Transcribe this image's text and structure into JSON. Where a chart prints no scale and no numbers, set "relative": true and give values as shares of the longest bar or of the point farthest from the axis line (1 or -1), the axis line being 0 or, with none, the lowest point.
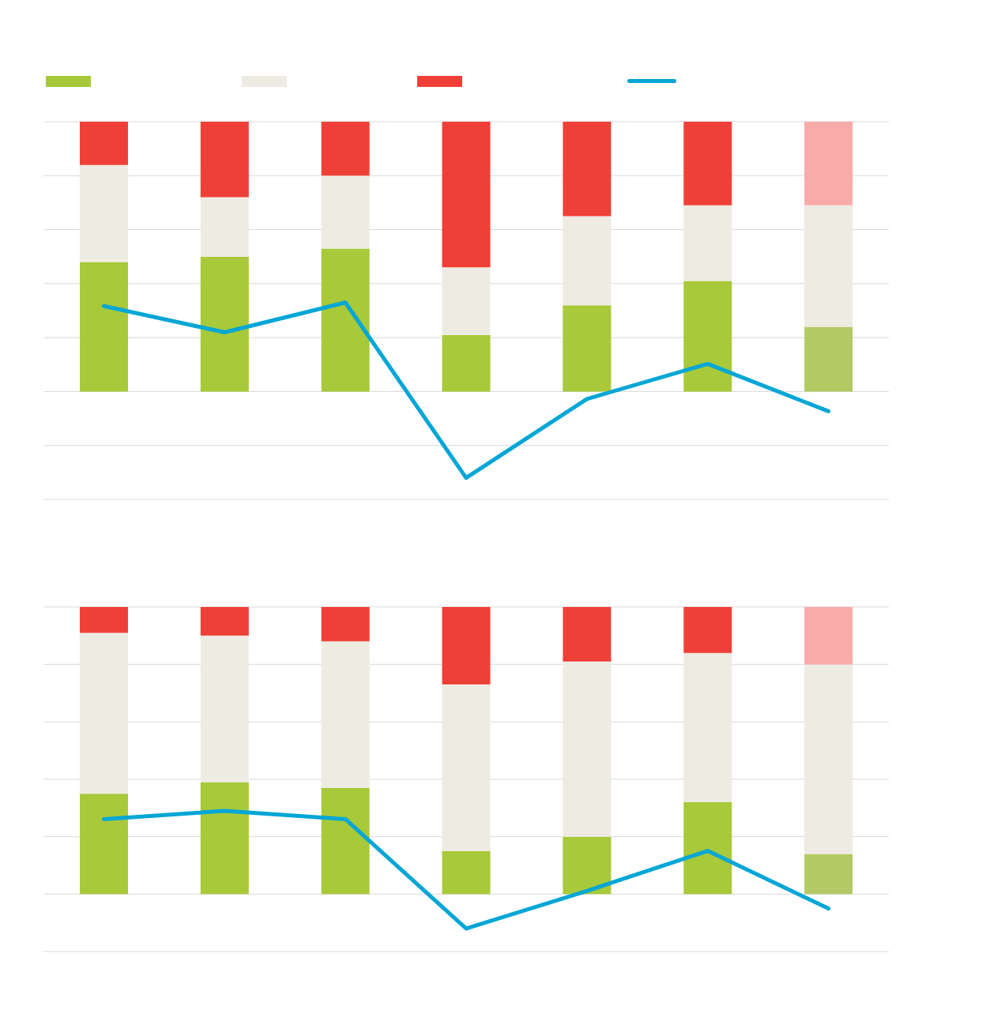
{
  "chart_data": [
    {
      "type": "bar",
      "relative": true,
      "stacked": true,
      "grid": "y",
      "categories": [
        null,
        null,
        null,
        null,
        null,
        null,
        null
      ],
      "series": [
        {
          "color": "#a8c939",
          "colors": [
            "#a8c939",
            "#a8c939",
            "#a8c939",
            "#a8c939",
            "#a8c939",
            "#a8c939",
            "#b3c964"
          ],
          "values": [
            0.48,
            0.5,
            0.53,
            0.21,
            0.32,
            0.41,
            0.24
          ]
        },
        {
          "color": "#eeebe3",
          "values": [
            0.36,
            0.22,
            0.27,
            0.25,
            0.33,
            0.28,
            0.45
          ]
        },
        {
          "color": "#ef4038",
          "colors": [
            "#ef4038",
            "#ef4038",
            "#ef4038",
            "#ef4038",
            "#ef4038",
            "#ef4038",
            "#f7aca9"
          ],
          "values": [
            0.16,
            0.28,
            0.2,
            0.54,
            0.35,
            0.31,
            0.31
          ]
        }
      ]
    },
    {
      "type": "line",
      "relative": true,
      "categories": [
        null,
        null,
        null,
        null,
        null,
        null,
        null
      ],
      "series": [
        {
          "color": "#00a6d6",
          "values": [
            0.98,
            0.83,
            1,
            0,
            0.45,
            0.65,
            0.38
          ]
        }
      ]
    },
    {
      "type": "bar",
      "relative": true,
      "stacked": true,
      "grid": "y",
      "categories": [
        null,
        null,
        null,
        null,
        null,
        null,
        null
      ],
      "series": [
        {
          "color": "#a8c939",
          "colors": [
            "#a8c939",
            "#a8c939",
            "#a8c939",
            "#a8c939",
            "#a8c939",
            "#a8c939",
            "#b3c964"
          ],
          "values": [
            0.35,
            0.39,
            0.37,
            0.15,
            0.2,
            0.32,
            0.14
          ]
        },
        {
          "color": "#eeebe3",
          "values": [
            0.56,
            0.51,
            0.51,
            0.58,
            0.61,
            0.52,
            0.66
          ]
        },
        {
          "color": "#ef4038",
          "colors": [
            "#ef4038",
            "#ef4038",
            "#ef4038",
            "#ef4038",
            "#ef4038",
            "#ef4038",
            "#f7aca9"
          ],
          "values": [
            0.09,
            0.1,
            0.12,
            0.27,
            0.19,
            0.16,
            0.2
          ]
        }
      ]
    },
    {
      "type": "line",
      "relative": true,
      "categories": [
        null,
        null,
        null,
        null,
        null,
        null,
        null
      ],
      "series": [
        {
          "color": "#00a6d6",
          "values": [
            0.93,
            1,
            0.93,
            0,
            0.32,
            0.66,
            0.17
          ]
        }
      ]
    }
  ]
}
